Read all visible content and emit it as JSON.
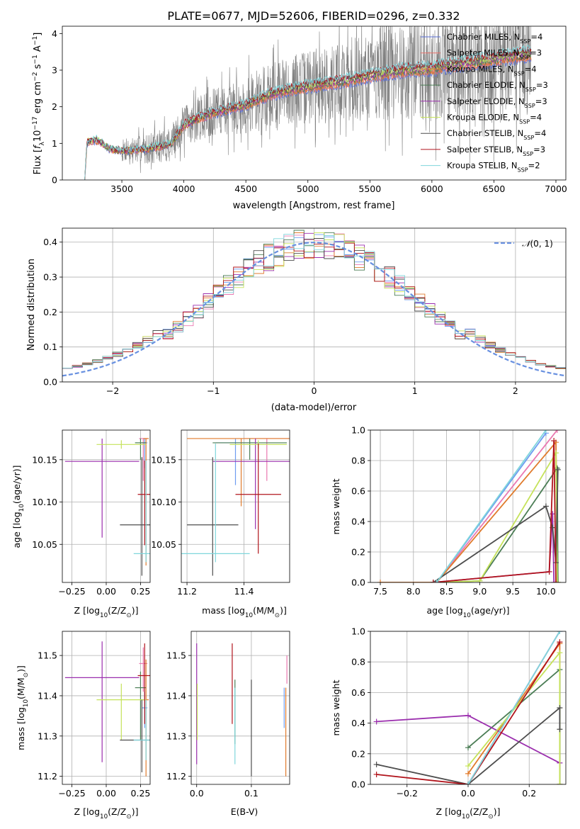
{
  "figure_title": "PLATE=0677, MJD=52606, FIBERID=0296, z=0.332",
  "colors": {
    "model_colors": [
      "#5a6fd6",
      "#e8716a",
      "#e07b2c",
      "#4b7d55",
      "#9b2fae",
      "#c5e25a",
      "#4d4d4d",
      "#b1141c",
      "#7fd6dc"
    ],
    "mw_colors": [
      "#6e9cf0",
      "#ea78b0",
      "#e07b2c",
      "#4b7d55",
      "#9b2fae",
      "#c5e25a",
      "#4d4d4d",
      "#b1141c",
      "#7fd6dc"
    ],
    "data_gray": "#7f7f7f",
    "normal_dash": "#6890e0",
    "grid": "#b0b0b0"
  },
  "chart_data": [
    {
      "id": "spectrum",
      "type": "line",
      "xlabel": "wavelength [Angstrom, rest frame]",
      "ylabel_parts": {
        "main": "Flux [",
        "f": "f",
        "sub": "λ",
        "mid": "10",
        "exp": "−17",
        "unit": " erg cm",
        "e2": "−2",
        "s": " s",
        "e1": "−1",
        "A": " A",
        "e3": "−1",
        "close": "]"
      },
      "xlim": [
        3020,
        7080
      ],
      "ylim": [
        0,
        4.2
      ],
      "xticks": [
        3500,
        4000,
        4500,
        5000,
        5500,
        6000,
        6500,
        7000
      ],
      "yticks": [
        0,
        1,
        2,
        3,
        4
      ],
      "grid": false,
      "legend_position": "top-right",
      "legend": [
        {
          "label": "Chabrier MILES, N",
          "sub": "SSP",
          "n": "=4"
        },
        {
          "label": "Salpeter MILES, N",
          "sub": "SSP",
          "n": "=3"
        },
        {
          "label": "Kroupa MILES, N",
          "sub": "SSP",
          "n": "=4"
        },
        {
          "label": "Chabrier ELODIE, N",
          "sub": "SSP",
          "n": "=3"
        },
        {
          "label": "Salpeter ELODIE, N",
          "sub": "SSP",
          "n": "=3"
        },
        {
          "label": "Kroupa ELODIE, N",
          "sub": "SSP",
          "n": "=4"
        },
        {
          "label": "Chabrier STELIB, N",
          "sub": "SSP",
          "n": "=4"
        },
        {
          "label": "Salpeter STELIB, N",
          "sub": "SSP",
          "n": "=3"
        },
        {
          "label": "Kroupa STELIB, N",
          "sub": "SSP",
          "n": "=2"
        }
      ],
      "model_continuum": [
        [
          3200,
          0.0
        ],
        [
          3220,
          1.05
        ],
        [
          3300,
          1.1
        ],
        [
          3400,
          0.85
        ],
        [
          3500,
          0.8
        ],
        [
          3700,
          0.85
        ],
        [
          3900,
          1.0
        ],
        [
          4000,
          1.5
        ],
        [
          4200,
          1.8
        ],
        [
          4500,
          2.05
        ],
        [
          4700,
          2.35
        ],
        [
          5000,
          2.55
        ],
        [
          5300,
          2.7
        ],
        [
          5500,
          2.85
        ],
        [
          5800,
          3.0
        ],
        [
          6000,
          3.05
        ],
        [
          6300,
          3.2
        ],
        [
          6600,
          3.35
        ],
        [
          6800,
          3.45
        ]
      ],
      "data_range": [
        3500,
        6800
      ]
    },
    {
      "id": "residuals",
      "type": "bar",
      "xlabel": "(data-model)/error",
      "ylabel": "Normed distribution",
      "xlim": [
        -2.5,
        2.5
      ],
      "ylim": [
        0,
        0.44
      ],
      "xticks": [
        -2,
        -1,
        0,
        1,
        2
      ],
      "yticks": [
        0.0,
        0.1,
        0.2,
        0.3,
        0.4
      ],
      "grid": true,
      "legend_position": "top-right",
      "legend": [
        {
          "label": "(0, 1)",
          "symbol": "𝒩"
        }
      ],
      "bin_width": 0.1,
      "curve": "gaussian mean 0 sigma 1"
    },
    {
      "id": "age-vs-Z",
      "type": "scatter",
      "xlabel_parts": {
        "pre": "Z [log",
        "sub": "10",
        "post": "(Z/Z",
        "sun": "⊙",
        "end": ")]"
      },
      "ylabel_parts": {
        "pre": "age  [log",
        "sub": "10",
        "post": "(age/yr)]"
      },
      "xlim": [
        -0.32,
        0.32
      ],
      "ylim": [
        10.005,
        10.185
      ],
      "xticks": [
        -0.25,
        0.0,
        0.25
      ],
      "yticks": [
        10.05,
        10.1,
        10.15
      ],
      "grid": true,
      "points": [
        {
          "x": 0.28,
          "y": 10.17,
          "xerr": 0.02,
          "yerr": [
            0.03,
            0.005
          ]
        },
        {
          "x": 0.27,
          "y": 10.175,
          "xerr": 0.03,
          "yerr": [
            0.05,
            0.0
          ]
        },
        {
          "x": 0.29,
          "y": 10.175,
          "xerr": 0.02,
          "yerr": [
            0.15,
            0.0
          ]
        },
        {
          "x": 0.25,
          "y": 10.17,
          "xerr": 0.04,
          "yerr": [
            0.02,
            0.005
          ]
        },
        {
          "x": -0.03,
          "y": 10.148,
          "xerr": 0.27,
          "yerr": [
            0.09,
            0.027
          ]
        },
        {
          "x": 0.11,
          "y": 10.168,
          "xerr": 0.18,
          "yerr": [
            0.005,
            0.005
          ]
        },
        {
          "x": 0.26,
          "y": 10.073,
          "xerr": 0.16,
          "yerr": [
            0.06,
            0.08
          ]
        },
        {
          "x": 0.28,
          "y": 10.109,
          "xerr": 0.05,
          "yerr": [
            0.06,
            0.04
          ]
        },
        {
          "x": 0.29,
          "y": 10.039,
          "xerr": 0.09,
          "yerr": [
            0.01,
            0.11
          ]
        }
      ]
    },
    {
      "id": "age-vs-mass",
      "type": "scatter",
      "xlabel_parts": {
        "pre": "mass [log",
        "sub": "10",
        "post": "(M/M",
        "sun": "⊙",
        "end": ")]"
      },
      "xlim": [
        11.18,
        11.56
      ],
      "ylim": [
        10.005,
        10.185
      ],
      "xticks": [
        11.2,
        11.4
      ],
      "yticks": [
        10.05,
        10.1,
        10.15
      ],
      "grid": true,
      "points": [
        {
          "x": 11.37,
          "y": 10.17,
          "xerr": 0.07,
          "yerr": [
            0.05,
            0.005
          ]
        },
        {
          "x": 11.48,
          "y": 10.175,
          "xerr": 0.08,
          "yerr": [
            0.05,
            0.0
          ]
        },
        {
          "x": 11.39,
          "y": 10.175,
          "xerr": 0.19,
          "yerr": [
            0.08,
            0.0
          ]
        },
        {
          "x": 11.42,
          "y": 10.17,
          "xerr": 0.13,
          "yerr": [
            0.02,
            0.005
          ]
        },
        {
          "x": 11.44,
          "y": 10.148,
          "xerr": 0.15,
          "yerr": [
            0.08,
            0.027
          ]
        },
        {
          "x": 11.45,
          "y": 10.168,
          "xerr": 0.1,
          "yerr": [
            0.005,
            0.005
          ]
        },
        {
          "x": 11.29,
          "y": 10.073,
          "xerr": 0.09,
          "yerr": [
            0.06,
            0.08
          ]
        },
        {
          "x": 11.45,
          "y": 10.109,
          "xerr": 0.08,
          "yerr": [
            0.07,
            0.06
          ]
        },
        {
          "x": 11.3,
          "y": 10.039,
          "xerr": 0.12,
          "yerr": [
            0.01,
            0.13
          ]
        }
      ]
    },
    {
      "id": "mass-weight-vs-age",
      "type": "line",
      "xlabel_parts": {
        "pre": "age  [log",
        "sub": "10",
        "post": "(age/yr)]"
      },
      "ylabel": "mass weight",
      "xlim": [
        7.35,
        10.3
      ],
      "ylim": [
        0,
        1
      ],
      "xticks": [
        7.5,
        8.0,
        8.5,
        9.0,
        9.5,
        10.0
      ],
      "yticks": [
        0.0,
        0.2,
        0.4,
        0.6,
        0.8,
        1.0
      ],
      "grid": true,
      "series": [
        {
          "x": [
            8.35,
            10.0
          ],
          "y": [
            0.0,
            0.98
          ]
        },
        {
          "x": [
            8.35,
            10.17
          ],
          "y": [
            0.0,
            1.0
          ]
        },
        {
          "x": [
            7.5,
            8.35,
            10.15,
            10.18
          ],
          "y": [
            0.0,
            0.0,
            0.92,
            0.0
          ]
        },
        {
          "x": [
            8.3,
            9.0,
            10.17,
            10.18
          ],
          "y": [
            0.0,
            0.01,
            0.75,
            0.0
          ]
        },
        {
          "x": [
            8.3,
            10.05,
            10.1,
            10.12
          ],
          "y": [
            0.0,
            0.07,
            0.45,
            0.0
          ]
        },
        {
          "x": [
            8.3,
            9.0,
            10.15,
            10.17
          ],
          "y": [
            0.0,
            0.01,
            0.85,
            0.0
          ]
        },
        {
          "x": [
            8.3,
            10.0,
            10.1,
            10.15,
            10.18
          ],
          "y": [
            0.0,
            0.5,
            0.36,
            0.13,
            0.74
          ]
        },
        {
          "x": [
            8.3,
            10.05,
            10.12,
            10.15
          ],
          "y": [
            0.0,
            0.07,
            0.93,
            0.0
          ]
        },
        {
          "x": [
            8.35,
            10.0
          ],
          "y": [
            0.0,
            1.0
          ]
        }
      ]
    },
    {
      "id": "mass-vs-Z",
      "type": "scatter",
      "xlabel_parts": {
        "pre": "Z [log",
        "sub": "10",
        "post": "(Z/Z",
        "sun": "⊙",
        "end": ")]"
      },
      "ylabel_parts": {
        "pre": "mass [log",
        "sub": "10",
        "post": "(M/M",
        "sun": "⊙",
        "end": ")]"
      },
      "xlim": [
        -0.32,
        0.32
      ],
      "ylim": [
        11.18,
        11.56
      ],
      "xticks": [
        -0.25,
        0.0,
        0.25
      ],
      "yticks": [
        11.2,
        11.3,
        11.4,
        11.5
      ],
      "grid": true,
      "points": [
        {
          "x": 0.28,
          "y": 11.37,
          "xerr": 0.02,
          "yerr": [
            0.05,
            0.04
          ]
        },
        {
          "x": 0.27,
          "y": 11.48,
          "xerr": 0.03,
          "yerr": [
            0.07,
            0.04
          ]
        },
        {
          "x": 0.29,
          "y": 11.39,
          "xerr": 0.02,
          "yerr": [
            0.19,
            0.1
          ]
        },
        {
          "x": 0.25,
          "y": 11.42,
          "xerr": 0.04,
          "yerr": [
            0.13,
            0.04
          ]
        },
        {
          "x": -0.03,
          "y": 11.445,
          "xerr": 0.27,
          "yerr": [
            0.21,
            0.09
          ]
        },
        {
          "x": 0.11,
          "y": 11.39,
          "xerr": 0.18,
          "yerr": [
            0.1,
            0.04
          ]
        },
        {
          "x": 0.26,
          "y": 11.29,
          "xerr": 0.16,
          "yerr": [
            0.08,
            0.1
          ]
        },
        {
          "x": 0.28,
          "y": 11.45,
          "xerr": 0.05,
          "yerr": [
            0.12,
            0.08
          ]
        },
        {
          "x": 0.29,
          "y": 11.29,
          "xerr": 0.09,
          "yerr": [
            0.05,
            0.1
          ]
        }
      ]
    },
    {
      "id": "mass-vs-ebv",
      "type": "scatter",
      "xlabel": "E(B-V)",
      "xlim": [
        -0.01,
        0.17
      ],
      "ylim": [
        11.18,
        11.56
      ],
      "xticks": [
        0.0,
        0.1
      ],
      "yticks": [
        11.2,
        11.3,
        11.4,
        11.5
      ],
      "grid": true,
      "points": [
        {
          "x": 0.16,
          "y": 11.37,
          "yerr": [
            0.05,
            0.05
          ]
        },
        {
          "x": 0.165,
          "y": 11.48,
          "yerr": [
            0.05,
            0.02
          ]
        },
        {
          "x": 0.163,
          "y": 11.39,
          "yerr": [
            0.19,
            0.03
          ]
        },
        {
          "x": 0.07,
          "y": 11.42,
          "yerr": [
            0.14,
            0.02
          ]
        },
        {
          "x": 0.0,
          "y": 11.44,
          "yerr": [
            0.21,
            0.09
          ]
        },
        {
          "x": 0.001,
          "y": 11.38,
          "yerr": [
            0.09,
            0.05
          ]
        },
        {
          "x": 0.1,
          "y": 11.3,
          "yerr": [
            0.1,
            0.14
          ]
        },
        {
          "x": 0.065,
          "y": 11.44,
          "yerr": [
            0.11,
            0.09
          ]
        },
        {
          "x": 0.07,
          "y": 11.3,
          "yerr": [
            0.07,
            0.12
          ]
        }
      ]
    },
    {
      "id": "mass-weight-vs-Z",
      "type": "line",
      "xlabel_parts": {
        "pre": "Z [log",
        "sub": "10",
        "post": "(Z/Z",
        "sun": "⊙",
        "end": ")]"
      },
      "ylabel": "mass weight",
      "xlim": [
        -0.32,
        0.32
      ],
      "ylim": [
        0,
        1
      ],
      "xticks": [
        -0.2,
        0.0,
        0.2
      ],
      "yticks": [
        0.0,
        0.2,
        0.4,
        0.6,
        0.8,
        1.0
      ],
      "grid": true,
      "series": [
        {
          "x": [
            0.0,
            0.3
          ],
          "y": [
            0.0,
            1.0
          ]
        },
        {
          "x": [
            0.0,
            0.3
          ],
          "y": [
            0.0,
            1.0
          ]
        },
        {
          "x": [
            0.0,
            0.3,
            0.3
          ],
          "y": [
            0.07,
            0.92,
            0.0
          ]
        },
        {
          "x": [
            0.0,
            0.3,
            0.3
          ],
          "y": [
            0.24,
            0.75,
            0.0
          ]
        },
        {
          "x": [
            -0.3,
            0.0,
            0.3
          ],
          "y": [
            0.41,
            0.45,
            0.14
          ]
        },
        {
          "x": [
            0.0,
            0.3,
            0.3
          ],
          "y": [
            0.12,
            0.86,
            0.0
          ]
        },
        {
          "x": [
            -0.3,
            0.0,
            0.3,
            0.3
          ],
          "y": [
            0.13,
            0.0,
            0.5,
            0.36
          ]
        },
        {
          "x": [
            -0.3,
            0.0,
            0.3
          ],
          "y": [
            0.065,
            0.0,
            0.93
          ]
        },
        {
          "x": [
            0.0,
            0.3
          ],
          "y": [
            0.0,
            1.0
          ]
        }
      ]
    }
  ]
}
